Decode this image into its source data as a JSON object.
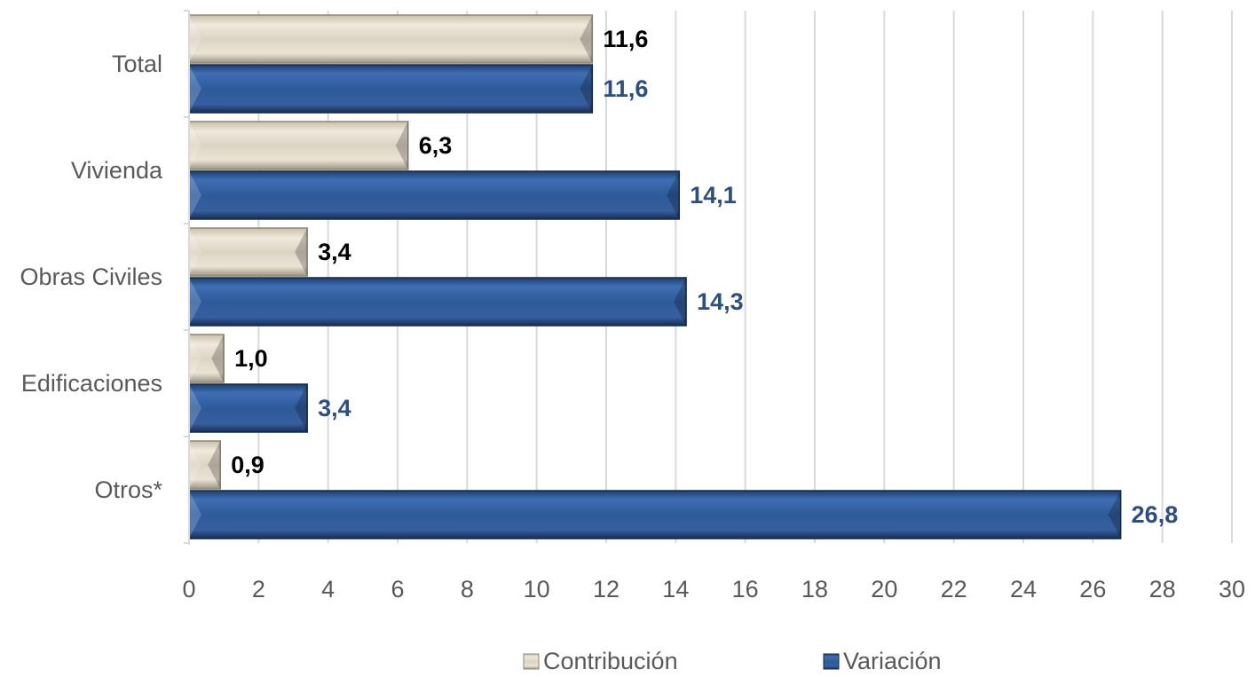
{
  "chart_data": {
    "type": "bar",
    "orientation": "horizontal",
    "title": "",
    "xlabel": "",
    "ylabel": "",
    "categories": [
      "Total",
      "Vivienda",
      "Obras Civiles",
      "Edificaciones",
      "Otros*"
    ],
    "series": [
      {
        "name": "Contribución",
        "values": [
          11.6,
          6.3,
          3.4,
          1.0,
          0.9
        ],
        "labels": [
          "11,6",
          "6,3",
          "3,4",
          "1,0",
          "0,9"
        ],
        "color": "#d6ccb8",
        "label_color": "#000000"
      },
      {
        "name": "Variación",
        "values": [
          11.6,
          14.1,
          14.3,
          3.4,
          26.8
        ],
        "labels": [
          "11,6",
          "14,1",
          "14,3",
          "3,4",
          "26,8"
        ],
        "color": "#2e5a99",
        "label_color": "#2b4f82"
      }
    ],
    "xlim": [
      0,
      30
    ],
    "xticks": [
      0,
      2,
      4,
      6,
      8,
      10,
      12,
      14,
      16,
      18,
      20,
      22,
      24,
      26,
      28,
      30
    ],
    "grid": "vertical",
    "legend_position": "bottom"
  }
}
